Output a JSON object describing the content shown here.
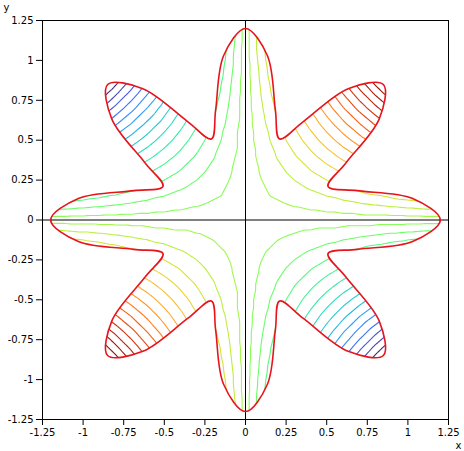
{
  "chart_data": {
    "type": "contour",
    "x_label": "x",
    "y_label": "y",
    "xlim": [
      -1.25,
      1.25
    ],
    "ylim": [
      -1.25,
      1.25
    ],
    "xticks": [
      -1.25,
      -1,
      -0.75,
      -0.5,
      -0.25,
      0,
      0.25,
      0.5,
      0.75,
      1,
      1.25
    ],
    "yticks": [
      -1.25,
      -1,
      -0.75,
      -0.5,
      -0.25,
      0,
      0.25,
      0.5,
      0.75,
      1,
      1.25
    ],
    "origin": [
      0,
      0
    ],
    "field": {
      "x": [
        -1.2,
        -1.1,
        -1,
        -0.9,
        -0.8,
        -0.7,
        -0.6,
        -0.5,
        -0.4,
        -0.3,
        -0.2,
        -0.1,
        0,
        0.1,
        0.2,
        0.3,
        0.4,
        0.5,
        0.6,
        0.7,
        0.8,
        0.9,
        1,
        1.1,
        1.2
      ],
      "y": [
        -1.2,
        -1.1,
        -1,
        -0.9,
        -0.8,
        -0.7,
        -0.6,
        -0.5,
        -0.4,
        -0.3,
        -0.2,
        -0.1,
        0,
        0.1,
        0.2,
        0.3,
        0.4,
        0.5,
        0.6,
        0.7,
        0.8,
        0.9,
        1,
        1.1,
        1.2
      ],
      "z": [
        [
          1.44,
          1.32,
          1.2,
          1.08,
          0.96,
          0.84,
          0.72,
          0.6,
          0.48,
          0.36,
          0.24,
          0.12,
          0,
          -0.12,
          -0.24,
          -0.36,
          -0.48,
          -0.6,
          -0.72,
          -0.84,
          -0.96,
          -1.08,
          -1.2,
          -1.32,
          -1.44
        ],
        [
          1.32,
          1.21,
          1.1,
          0.99,
          0.88,
          0.77,
          0.66,
          0.55,
          0.44,
          0.33,
          0.22,
          0.11,
          0,
          -0.11,
          -0.22,
          -0.33,
          -0.44,
          -0.55,
          -0.66,
          -0.77,
          -0.88,
          -0.99,
          -1.1,
          -1.21,
          -1.32
        ],
        [
          1.2,
          1.1,
          1,
          0.9,
          0.8,
          0.7,
          0.6,
          0.5,
          0.4,
          0.3,
          0.2,
          0.1,
          0,
          -0.1,
          -0.2,
          -0.3,
          -0.4,
          -0.5,
          -0.6,
          -0.7,
          -0.8,
          -0.9,
          -1,
          -1.1,
          -1.2
        ],
        [
          1.08,
          0.99,
          0.9,
          0.81,
          0.72,
          0.63,
          0.54,
          0.45,
          0.36,
          0.27,
          0.18,
          0.09,
          0,
          -0.09,
          -0.18,
          -0.27,
          -0.36,
          -0.45,
          -0.54,
          -0.63,
          -0.72,
          -0.81,
          -0.9,
          -0.99,
          -1.08
        ],
        [
          0.96,
          0.88,
          0.8,
          0.72,
          0.64,
          0.56,
          0.48,
          0.4,
          0.32,
          0.24,
          0.16,
          0.08,
          0,
          -0.08,
          -0.16,
          -0.24,
          -0.32,
          -0.4,
          -0.48,
          -0.56,
          -0.64,
          -0.72,
          -0.8,
          -0.88,
          -0.96
        ],
        [
          0.84,
          0.77,
          0.7,
          0.63,
          0.56,
          0.49,
          0.42,
          0.35,
          0.28,
          0.21,
          0.14,
          0.07,
          0,
          -0.07,
          -0.14,
          -0.21,
          -0.28,
          -0.35,
          -0.42,
          -0.49,
          -0.56,
          -0.63,
          -0.7,
          -0.77,
          -0.84
        ],
        [
          0.72,
          0.66,
          0.6,
          0.54,
          0.48,
          0.42,
          0.36,
          0.3,
          0.24,
          0.18,
          0.12,
          0.06,
          0,
          -0.06,
          -0.12,
          -0.18,
          -0.24,
          -0.3,
          -0.36,
          -0.42,
          -0.48,
          -0.54,
          -0.6,
          -0.66,
          -0.72
        ],
        [
          0.6,
          0.55,
          0.5,
          0.45,
          0.4,
          0.35,
          0.3,
          0.25,
          0.2,
          0.15,
          0.1,
          0.05,
          0,
          -0.05,
          -0.1,
          -0.15,
          -0.2,
          -0.25,
          -0.3,
          -0.35,
          -0.4,
          -0.45,
          -0.5,
          -0.55,
          -0.6
        ],
        [
          0.48,
          0.44,
          0.4,
          0.36,
          0.32,
          0.28,
          0.24,
          0.2,
          0.16,
          0.12,
          0.08,
          0.04,
          0,
          -0.04,
          -0.08,
          -0.12,
          -0.16,
          -0.2,
          -0.24,
          -0.28,
          -0.32,
          -0.36,
          -0.4,
          -0.44,
          -0.48
        ],
        [
          0.36,
          0.33,
          0.3,
          0.27,
          0.24,
          0.21,
          0.18,
          0.15,
          0.12,
          0.09,
          0.06,
          0.03,
          0,
          -0.03,
          -0.06,
          -0.09,
          -0.12,
          -0.15,
          -0.18,
          -0.21,
          -0.24,
          -0.27,
          -0.3,
          -0.33,
          -0.36
        ],
        [
          0.24,
          0.22,
          0.2,
          0.18,
          0.16,
          0.14,
          0.12,
          0.1,
          0.08,
          0.06,
          0.04,
          0.02,
          0,
          -0.02,
          -0.04,
          -0.06,
          -0.08,
          -0.1,
          -0.12,
          -0.14,
          -0.16,
          -0.18,
          -0.2,
          -0.22,
          -0.24
        ],
        [
          0.12,
          0.11,
          0.1,
          0.09,
          0.08,
          0.07,
          0.06,
          0.05,
          0.04,
          0.03,
          0.02,
          0.01,
          0,
          -0.01,
          -0.02,
          -0.03,
          -0.04,
          -0.05,
          -0.06,
          -0.07,
          -0.08,
          -0.09,
          -0.1,
          -0.11,
          -0.12
        ],
        [
          0,
          0,
          0,
          0,
          0,
          0,
          0,
          0,
          0,
          0,
          0,
          0,
          0,
          0,
          0,
          0,
          0,
          0,
          0,
          0,
          0,
          0,
          0,
          0,
          0
        ],
        [
          -0.12,
          -0.11,
          -0.1,
          -0.09,
          -0.08,
          -0.07,
          -0.06,
          -0.05,
          -0.04,
          -0.03,
          -0.02,
          -0.01,
          0,
          0.01,
          0.02,
          0.03,
          0.04,
          0.05,
          0.06,
          0.07,
          0.08,
          0.09,
          0.1,
          0.11,
          0.12
        ],
        [
          -0.24,
          -0.22,
          -0.2,
          -0.18,
          -0.16,
          -0.14,
          -0.12,
          -0.1,
          -0.08,
          -0.06,
          -0.04,
          -0.02,
          0,
          0.02,
          0.04,
          0.06,
          0.08,
          0.1,
          0.12,
          0.14,
          0.16,
          0.18,
          0.2,
          0.22,
          0.24
        ],
        [
          -0.36,
          -0.33,
          -0.3,
          -0.27,
          -0.24,
          -0.21,
          -0.18,
          -0.15,
          -0.12,
          -0.09,
          -0.06,
          -0.03,
          0,
          0.03,
          0.06,
          0.09,
          0.12,
          0.15,
          0.18,
          0.21,
          0.24,
          0.27,
          0.3,
          0.33,
          0.36
        ],
        [
          -0.48,
          -0.44,
          -0.4,
          -0.36,
          -0.32,
          -0.28,
          -0.24,
          -0.2,
          -0.16,
          -0.12,
          -0.08,
          -0.04,
          0,
          0.04,
          0.08,
          0.12,
          0.16,
          0.2,
          0.24,
          0.28,
          0.32,
          0.36,
          0.4,
          0.44,
          0.48
        ],
        [
          -0.6,
          -0.55,
          -0.5,
          -0.45,
          -0.4,
          -0.35,
          -0.3,
          -0.25,
          -0.2,
          -0.15,
          -0.1,
          -0.05,
          0,
          0.05,
          0.1,
          0.15,
          0.2,
          0.25,
          0.3,
          0.35,
          0.4,
          0.45,
          0.5,
          0.55,
          0.6
        ],
        [
          -0.72,
          -0.66,
          -0.6,
          -0.54,
          -0.48,
          -0.42,
          -0.36,
          -0.3,
          -0.24,
          -0.18,
          -0.12,
          -0.06,
          0,
          0.06,
          0.12,
          0.18,
          0.24,
          0.3,
          0.36,
          0.42,
          0.48,
          0.54,
          0.6,
          0.66,
          0.72
        ],
        [
          -0.84,
          -0.77,
          -0.7,
          -0.63,
          -0.56,
          -0.49,
          -0.42,
          -0.35,
          -0.28,
          -0.21,
          -0.14,
          -0.07,
          0,
          0.07,
          0.14,
          0.21,
          0.28,
          0.35,
          0.42,
          0.49,
          0.56,
          0.63,
          0.7,
          0.77,
          0.84
        ],
        [
          -0.96,
          -0.88,
          -0.8,
          -0.72,
          -0.64,
          -0.56,
          -0.48,
          -0.4,
          -0.32,
          -0.24,
          -0.16,
          -0.08,
          0,
          0.08,
          0.16,
          0.24,
          0.32,
          0.4,
          0.48,
          0.56,
          0.64,
          0.72,
          0.8,
          0.88,
          0.96
        ],
        [
          -1.08,
          -0.99,
          -0.9,
          -0.81,
          -0.72,
          -0.63,
          -0.54,
          -0.45,
          -0.36,
          -0.27,
          -0.18,
          -0.09,
          0,
          0.09,
          0.18,
          0.27,
          0.36,
          0.45,
          0.54,
          0.63,
          0.72,
          0.81,
          0.9,
          0.99,
          1.08
        ],
        [
          -1.2,
          -1.1,
          -1,
          -0.9,
          -0.8,
          -0.7,
          -0.6,
          -0.5,
          -0.4,
          -0.3,
          -0.2,
          -0.1,
          0,
          0.1,
          0.2,
          0.3,
          0.4,
          0.5,
          0.6,
          0.7,
          0.8,
          0.9,
          1,
          1.1,
          1.2
        ],
        [
          -1.32,
          -1.21,
          -1.1,
          -0.99,
          -0.88,
          -0.77,
          -0.66,
          -0.55,
          -0.44,
          -0.33,
          -0.22,
          -0.11,
          0,
          0.11,
          0.22,
          0.33,
          0.44,
          0.55,
          0.66,
          0.77,
          0.88,
          0.99,
          1.1,
          1.21,
          1.32
        ],
        [
          -1.44,
          -1.32,
          -1.2,
          -1.08,
          -0.96,
          -0.84,
          -0.72,
          -0.6,
          -0.48,
          -0.36,
          -0.24,
          -0.12,
          0,
          0.12,
          0.24,
          0.36,
          0.48,
          0.6,
          0.72,
          0.84,
          0.96,
          1.08,
          1.2,
          1.32,
          1.44
        ]
      ]
    },
    "contours": {
      "color": "turbo",
      "zlim": [
        -0.72,
        0.72
      ],
      "levels": [
        -0.675,
        -0.625,
        -0.575,
        -0.525,
        -0.475,
        -0.425,
        -0.375,
        -0.325,
        -0.275,
        -0.225,
        -0.175,
        -0.125,
        -0.075,
        -0.025,
        0.025,
        0.075,
        0.125,
        0.175,
        0.225,
        0.275,
        0.325,
        0.375,
        0.425,
        0.475,
        0.525,
        0.575,
        0.625,
        0.675
      ]
    },
    "boundary": {
      "color": "#e8141c",
      "x": [
        1.2,
        1.029,
        0.688,
        0.508,
        0.617,
        0.823,
        0.849,
        0.632,
        0.356,
        0.21,
        0.184,
        0.135,
        0,
        -0.135,
        -0.184,
        -0.21,
        -0.356,
        -0.632,
        -0.849,
        -0.823,
        -0.617,
        -0.508,
        -0.688,
        -1.029,
        -1.2,
        -1.029,
        -0.688,
        -0.508,
        -0.617,
        -0.823,
        -0.849,
        -0.632,
        -0.356,
        -0.21,
        -0.184,
        -0.135,
        0,
        0.135,
        0.184,
        0.21,
        0.356,
        0.632,
        0.849,
        0.823,
        0.617,
        0.508,
        0.688,
        1.029
      ],
      "y": [
        0,
        0.135,
        0.184,
        0.21,
        0.356,
        0.632,
        0.849,
        0.823,
        0.617,
        0.508,
        0.688,
        1.029,
        1.2,
        1.029,
        0.688,
        0.508,
        0.617,
        0.823,
        0.849,
        0.632,
        0.356,
        0.21,
        0.184,
        0.135,
        0,
        -0.135,
        -0.184,
        -0.21,
        -0.356,
        -0.632,
        -0.849,
        -0.823,
        -0.617,
        -0.508,
        -0.688,
        -1.029,
        -1.2,
        -1.029,
        -0.688,
        -0.508,
        -0.617,
        -0.823,
        -0.849,
        -0.632,
        -0.356,
        -0.21,
        -0.184,
        -0.135
      ]
    }
  }
}
